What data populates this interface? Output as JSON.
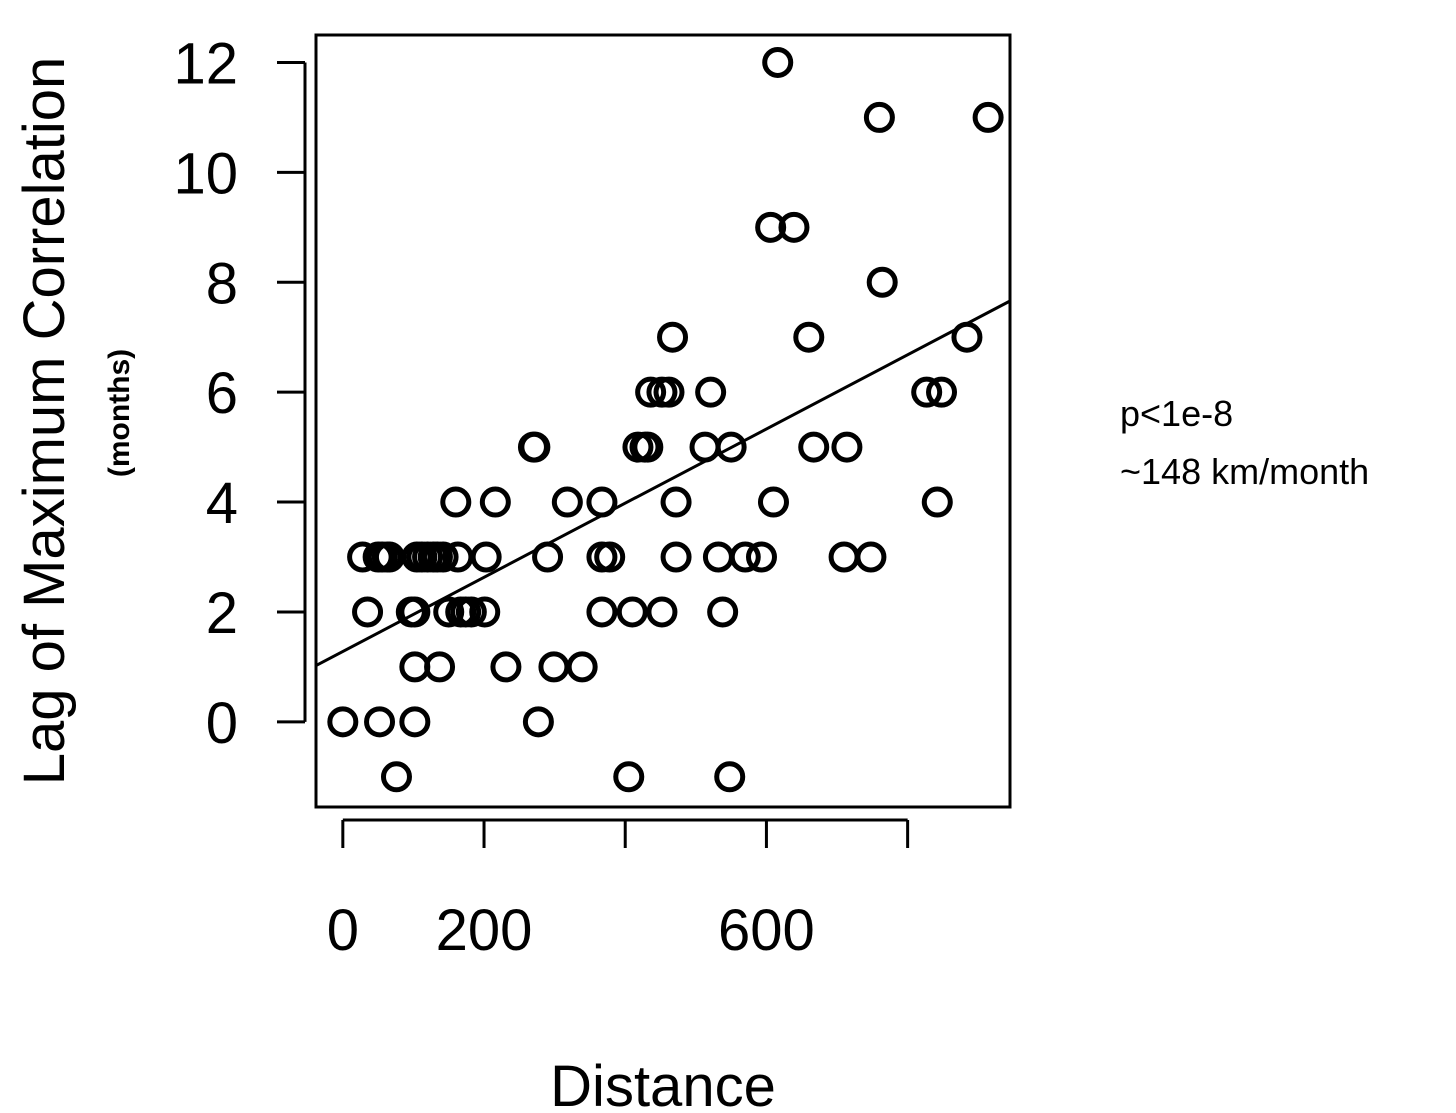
{
  "chart_data": {
    "type": "scatter",
    "xlabel": "Distance",
    "ylabel": "Lag of Maximum Correlation",
    "ylabel_sub": "(months)",
    "xlim": [
      -38,
      945
    ],
    "ylim": [
      -1.55,
      12.5
    ],
    "x_ticks": [
      0,
      200,
      400,
      600,
      800
    ],
    "x_tick_labels": [
      "0",
      "200",
      "",
      "600",
      ""
    ],
    "y_ticks": [
      0,
      2,
      4,
      6,
      8,
      10,
      12
    ],
    "y_tick_labels": [
      "0",
      "2",
      "4",
      "6",
      "8",
      "10",
      "12"
    ],
    "grid": false,
    "annotations": [
      "p<1e-8",
      "~148 km/month"
    ],
    "fit_line": {
      "intercept": 1.28,
      "slope": 0.00675
    },
    "points": [
      [
        0,
        0
      ],
      [
        52,
        0
      ],
      [
        102,
        0
      ],
      [
        277,
        0
      ],
      [
        76,
        -1
      ],
      [
        405,
        -1
      ],
      [
        548,
        -1
      ],
      [
        102,
        1
      ],
      [
        137,
        1
      ],
      [
        231,
        1
      ],
      [
        299,
        1
      ],
      [
        339,
        1
      ],
      [
        35,
        2
      ],
      [
        97,
        2
      ],
      [
        102,
        2
      ],
      [
        150,
        2
      ],
      [
        167,
        2
      ],
      [
        174,
        2
      ],
      [
        182,
        2
      ],
      [
        201,
        2
      ],
      [
        367,
        2
      ],
      [
        410,
        2
      ],
      [
        452,
        2
      ],
      [
        538,
        2
      ],
      [
        28,
        3
      ],
      [
        50,
        3
      ],
      [
        56,
        3
      ],
      [
        63,
        3
      ],
      [
        66,
        3
      ],
      [
        105,
        3
      ],
      [
        112,
        3
      ],
      [
        120,
        3
      ],
      [
        128,
        3
      ],
      [
        134,
        3
      ],
      [
        142,
        3
      ],
      [
        163,
        3
      ],
      [
        203,
        3
      ],
      [
        290,
        3
      ],
      [
        367,
        3
      ],
      [
        378,
        3
      ],
      [
        472,
        3
      ],
      [
        532,
        3
      ],
      [
        570,
        3
      ],
      [
        593,
        3
      ],
      [
        710,
        3
      ],
      [
        748,
        3
      ],
      [
        160,
        4
      ],
      [
        216,
        4
      ],
      [
        318,
        4
      ],
      [
        367,
        4
      ],
      [
        472,
        4
      ],
      [
        610,
        4
      ],
      [
        842,
        4
      ],
      [
        270,
        5
      ],
      [
        272,
        5
      ],
      [
        418,
        5
      ],
      [
        428,
        5
      ],
      [
        432,
        5
      ],
      [
        513,
        5
      ],
      [
        550,
        5
      ],
      [
        667,
        5
      ],
      [
        714,
        5
      ],
      [
        436,
        6
      ],
      [
        452,
        6
      ],
      [
        462,
        6
      ],
      [
        521,
        6
      ],
      [
        827,
        6
      ],
      [
        848,
        6
      ],
      [
        467,
        7
      ],
      [
        660,
        7
      ],
      [
        884,
        7
      ],
      [
        764,
        8
      ],
      [
        606,
        9
      ],
      [
        639,
        9
      ],
      [
        760,
        11
      ],
      [
        914,
        11
      ],
      [
        616,
        12
      ]
    ]
  }
}
